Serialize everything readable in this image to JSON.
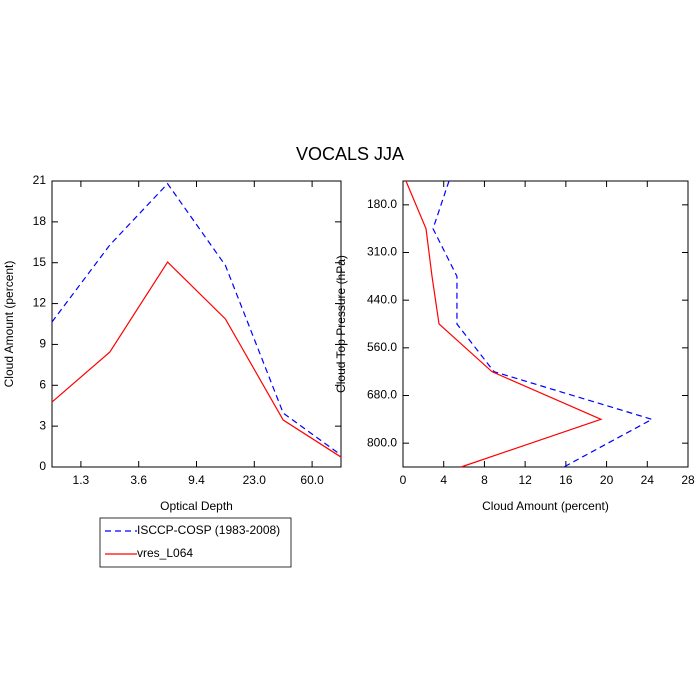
{
  "title": "VOCALS JJA",
  "chart_data": [
    {
      "type": "line",
      "orientation": "vertical",
      "x_label": "Optical Depth",
      "y_label": "Cloud Amount (percent)",
      "x": [
        0,
        1,
        2,
        3,
        4,
        5
      ],
      "xlim": [
        0,
        5
      ],
      "xticks": [
        {
          "value": 0.5,
          "label": "1.3"
        },
        {
          "value": 1.5,
          "label": "3.6"
        },
        {
          "value": 2.5,
          "label": "9.4"
        },
        {
          "value": 3.5,
          "label": "23.0"
        },
        {
          "value": 4.5,
          "label": "60.0"
        }
      ],
      "ylim": [
        0,
        21
      ],
      "yticks": [
        0,
        3,
        6,
        9,
        12,
        15,
        18,
        21
      ],
      "series": [
        {
          "name": "ISCCP-COSP (1983-2008)",
          "color": "#0000ff",
          "dash": "dashed",
          "values": [
            10.65,
            16.3,
            20.8,
            14.8,
            3.96,
            0.88
          ]
        },
        {
          "name": "vres_L064",
          "color": "#ff0000",
          "dash": "solid",
          "values": [
            4.77,
            8.44,
            15.05,
            10.87,
            3.45,
            0.73
          ]
        }
      ]
    },
    {
      "type": "line",
      "orientation": "horizontal",
      "x_label": "Cloud Amount (percent)",
      "y_label": "Cloud Top Pressure (hPa)",
      "y": [
        0,
        1,
        2,
        3,
        4,
        5,
        6
      ],
      "ylim": [
        6,
        0
      ],
      "yticks": [
        {
          "value": 0.5,
          "label": "180.0"
        },
        {
          "value": 1.5,
          "label": "310.0"
        },
        {
          "value": 2.5,
          "label": "440.0"
        },
        {
          "value": 3.5,
          "label": "560.0"
        },
        {
          "value": 4.5,
          "label": "680.0"
        },
        {
          "value": 5.5,
          "label": "800.0"
        }
      ],
      "xlim": [
        0,
        28
      ],
      "xticks": [
        0,
        4,
        8,
        12,
        16,
        20,
        24,
        28
      ],
      "series": [
        {
          "name": "ISCCP-COSP (1983-2008)",
          "color": "#0000ff",
          "dash": "dashed",
          "values": [
            4.52,
            2.95,
            5.3,
            5.3,
            8.94,
            24.46,
            15.8
          ]
        },
        {
          "name": "vres_L064",
          "color": "#ff0000",
          "dash": "solid",
          "values": [
            0.29,
            2.26,
            2.85,
            3.54,
            8.74,
            19.45,
            5.7
          ]
        }
      ]
    }
  ]
}
